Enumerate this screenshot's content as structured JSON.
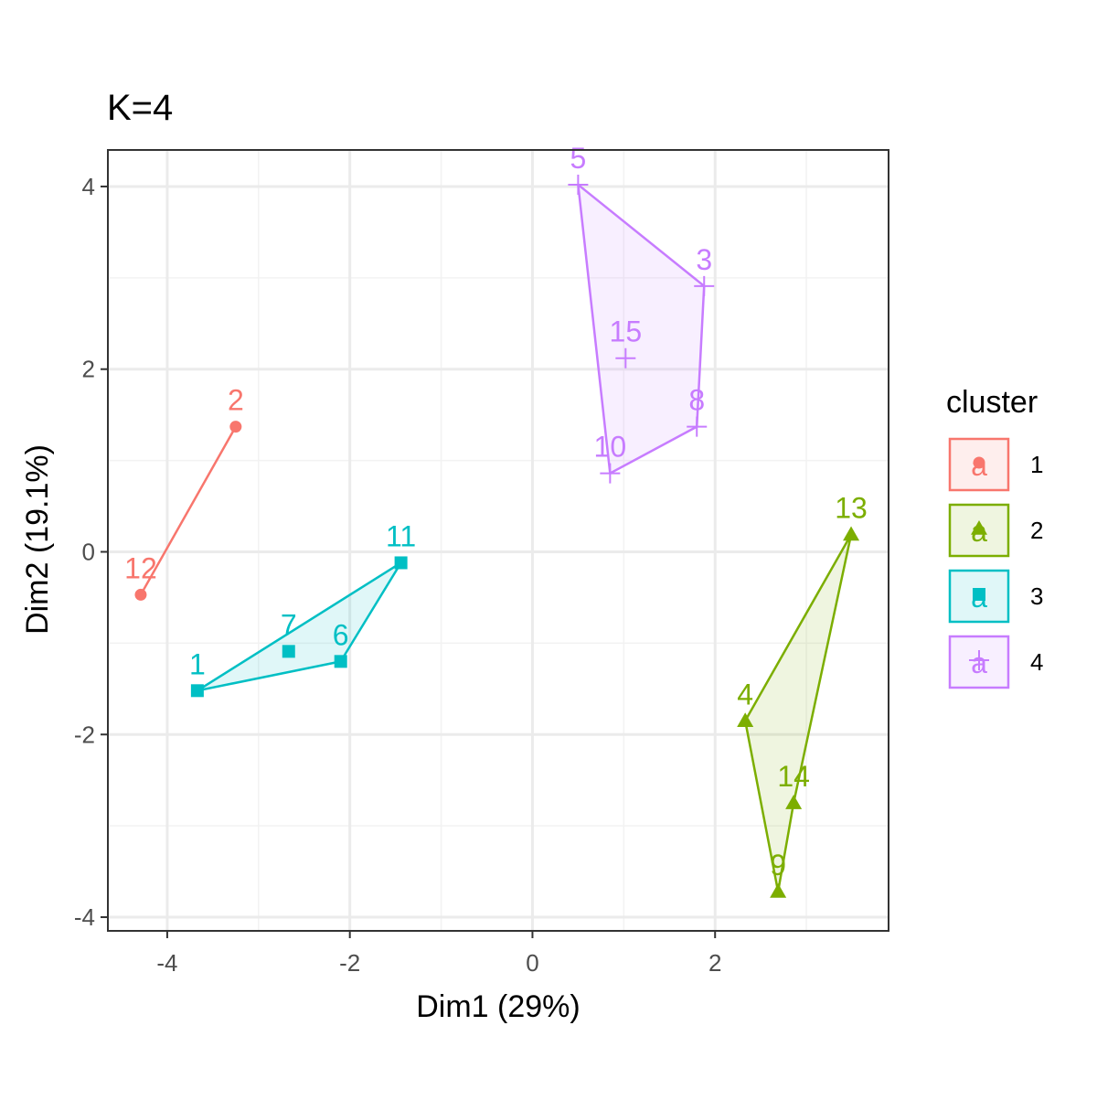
{
  "chart_data": {
    "type": "scatter",
    "title": "K=4",
    "xlabel": "Dim1 (29%)",
    "ylabel": "Dim2 (19.1%)",
    "xlim": [
      -4.65,
      3.9
    ],
    "ylim": [
      -4.15,
      4.4
    ],
    "x_ticks": [
      -4,
      -2,
      0,
      2
    ],
    "x_tick_labels": [
      "-4",
      "-2",
      "0",
      "2"
    ],
    "y_ticks": [
      -4,
      -2,
      0,
      2,
      4
    ],
    "y_tick_labels": [
      "-4",
      "-2",
      "0",
      "2",
      "4"
    ],
    "grid": true,
    "legend": {
      "title": "cluster",
      "position": "right",
      "glyph_letter": "a",
      "items": [
        {
          "label": "1",
          "color": "#F8766D",
          "shape": "circle"
        },
        {
          "label": "2",
          "color": "#7CAE00",
          "shape": "triangle"
        },
        {
          "label": "3",
          "color": "#00BFC4",
          "shape": "square"
        },
        {
          "label": "4",
          "color": "#C77CFF",
          "shape": "cross"
        }
      ]
    },
    "series": [
      {
        "cluster": "1",
        "color": "#F8766D",
        "shape": "circle",
        "points": [
          {
            "label": "2",
            "x": -3.25,
            "y": 1.37
          },
          {
            "label": "12",
            "x": -4.29,
            "y": -0.47
          }
        ],
        "hull": [
          "2",
          "12"
        ]
      },
      {
        "cluster": "2",
        "color": "#7CAE00",
        "shape": "triangle",
        "points": [
          {
            "label": "13",
            "x": 3.49,
            "y": 0.19
          },
          {
            "label": "4",
            "x": 2.33,
            "y": -1.85
          },
          {
            "label": "14",
            "x": 2.86,
            "y": -2.75
          },
          {
            "label": "9",
            "x": 2.69,
            "y": -3.72
          }
        ],
        "hull": [
          "13",
          "4",
          "9",
          "14"
        ]
      },
      {
        "cluster": "3",
        "color": "#00BFC4",
        "shape": "square",
        "points": [
          {
            "label": "11",
            "x": -1.44,
            "y": -0.12
          },
          {
            "label": "7",
            "x": -2.67,
            "y": -1.09
          },
          {
            "label": "6",
            "x": -2.1,
            "y": -1.2
          },
          {
            "label": "1",
            "x": -3.67,
            "y": -1.52
          }
        ],
        "hull": [
          "11",
          "1",
          "6"
        ]
      },
      {
        "cluster": "4",
        "color": "#C77CFF",
        "shape": "cross",
        "points": [
          {
            "label": "5",
            "x": 0.5,
            "y": 4.02
          },
          {
            "label": "3",
            "x": 1.88,
            "y": 2.91
          },
          {
            "label": "15",
            "x": 1.02,
            "y": 2.12
          },
          {
            "label": "8",
            "x": 1.8,
            "y": 1.37
          },
          {
            "label": "10",
            "x": 0.85,
            "y": 0.86
          }
        ],
        "hull": [
          "5",
          "3",
          "8",
          "10"
        ]
      }
    ]
  }
}
